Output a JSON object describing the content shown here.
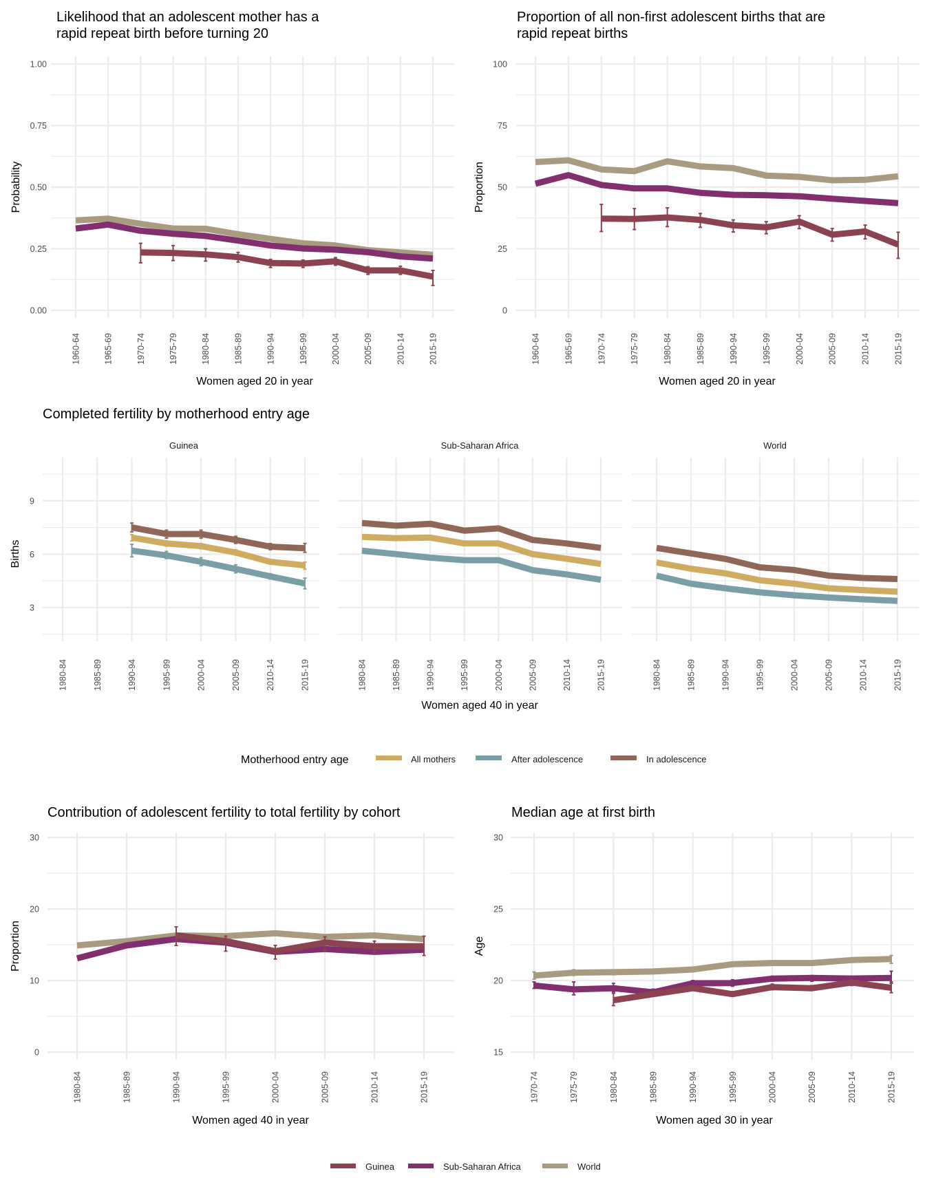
{
  "colors": {
    "Guinea": "#8b4351",
    "Sub-Saharan Africa": "#822f70",
    "World": "#a89b80",
    "All mothers": "#cfab62",
    "After adolescence": "#7a9ea5",
    "In adolescence": "#8f6657",
    "grid": "#ebebeb"
  },
  "legends": {
    "entry_age": {
      "title": "Motherhood entry age",
      "items": [
        "All mothers",
        "After adolescence",
        "In adolescence"
      ]
    },
    "region": {
      "items": [
        "Guinea",
        "Sub-Saharan Africa",
        "World"
      ]
    }
  },
  "chart_data": [
    {
      "id": "rapid-repeat-likelihood",
      "type": "line",
      "title": [
        "Likelihood that an adolescent mother has a",
        "rapid repeat birth before turning 20"
      ],
      "xlabel": "Women aged 20 in year",
      "ylabel": "Probability",
      "ylim": [
        0,
        1
      ],
      "yticks": [
        0,
        0.25,
        0.5,
        0.75,
        1
      ],
      "ytick_labels": [
        "0.00",
        "0.25",
        "0.50",
        "0.75",
        "1.00"
      ],
      "grid": true,
      "categories": [
        "1960-64",
        "1965-69",
        "1970-74",
        "1975-79",
        "1980-84",
        "1985-89",
        "1990-94",
        "1995-99",
        "2000-04",
        "2005-09",
        "2010-14",
        "2015-19"
      ],
      "series": [
        {
          "name": "World",
          "values": [
            0.365,
            0.372,
            0.351,
            0.332,
            0.331,
            0.309,
            0.29,
            0.272,
            0.263,
            0.244,
            0.235,
            0.225
          ]
        },
        {
          "name": "Sub-Saharan Africa",
          "values": [
            0.332,
            0.348,
            0.323,
            0.311,
            0.302,
            0.283,
            0.263,
            0.251,
            0.246,
            0.236,
            0.219,
            0.21
          ]
        },
        {
          "name": "Guinea",
          "values": [
            null,
            null,
            0.235,
            0.233,
            0.227,
            0.216,
            0.192,
            0.19,
            0.199,
            0.162,
            0.162,
            0.137
          ],
          "lower": [
            null,
            null,
            0.193,
            0.202,
            0.2,
            0.196,
            0.174,
            0.174,
            0.183,
            0.146,
            0.146,
            0.101
          ],
          "upper": [
            null,
            null,
            0.272,
            0.263,
            0.25,
            0.235,
            0.207,
            0.204,
            0.214,
            0.177,
            0.179,
            0.162
          ]
        }
      ]
    },
    {
      "id": "rapid-repeat-proportion",
      "type": "line",
      "title": [
        "Proportion of all non-first adolescent births that are",
        "rapid repeat births"
      ],
      "xlabel": "Women aged 20 in year",
      "ylabel": "Proportion",
      "ylim": [
        0,
        100
      ],
      "yticks": [
        0,
        25,
        50,
        75,
        100
      ],
      "ytick_labels": [
        "0",
        "25",
        "50",
        "75",
        "100"
      ],
      "grid": true,
      "categories": [
        "1960-64",
        "1965-69",
        "1970-74",
        "1975-79",
        "1980-84",
        "1985-89",
        "1990-94",
        "1995-99",
        "2000-04",
        "2005-09",
        "2010-14",
        "2015-19"
      ],
      "series": [
        {
          "name": "World",
          "values": [
            60.2,
            60.9,
            57.2,
            56.5,
            60.5,
            58.4,
            57.7,
            54.7,
            54.2,
            52.8,
            53.0,
            54.4
          ]
        },
        {
          "name": "Sub-Saharan Africa",
          "values": [
            51.4,
            54.9,
            50.9,
            49.5,
            49.5,
            47.7,
            46.9,
            46.7,
            46.3,
            45.3,
            44.4,
            43.5
          ]
        },
        {
          "name": "Guinea",
          "values": [
            null,
            null,
            37.2,
            37.1,
            37.7,
            36.7,
            34.5,
            33.7,
            36.0,
            30.7,
            32.0,
            26.7
          ],
          "lower": [
            null,
            null,
            32.0,
            32.8,
            34.0,
            33.7,
            31.8,
            31.1,
            33.2,
            28.1,
            29.0,
            21.1
          ],
          "upper": [
            null,
            null,
            43.0,
            41.3,
            41.6,
            39.3,
            36.7,
            36.0,
            38.4,
            33.2,
            34.6,
            31.7
          ]
        }
      ]
    },
    {
      "id": "completed-fertility",
      "type": "line",
      "title": [
        "Completed fertility by motherhood entry age"
      ],
      "xlabel": "Women aged 40 in year",
      "ylabel": "Births",
      "ylim": [
        1.1,
        11.43
      ],
      "yticks": [
        3,
        6,
        9
      ],
      "ytick_labels": [
        "3",
        "6",
        "9"
      ],
      "minor_yticks": [
        1.5,
        4.5,
        7.5,
        10.5
      ],
      "grid": true,
      "categories": [
        "1980-84",
        "1985-89",
        "1990-94",
        "1995-99",
        "2000-04",
        "2005-09",
        "2010-14",
        "2015-19"
      ],
      "facets": [
        {
          "name": "Guinea",
          "series": [
            {
              "name": "In adolescence",
              "values": [
                null,
                null,
                7.5,
                7.13,
                7.13,
                6.8,
                6.42,
                6.33
              ],
              "lower": [
                null,
                null,
                7.25,
                6.9,
                6.9,
                6.6,
                6.25,
                6.1
              ],
              "upper": [
                null,
                null,
                7.75,
                7.35,
                7.35,
                7.0,
                6.6,
                6.6
              ]
            },
            {
              "name": "All mothers",
              "values": [
                null,
                null,
                6.93,
                6.6,
                6.45,
                6.09,
                5.57,
                5.37
              ],
              "lower": [
                null,
                null,
                6.75,
                6.45,
                6.3,
                5.95,
                5.45,
                5.15
              ],
              "upper": [
                null,
                null,
                7.1,
                6.75,
                6.6,
                6.25,
                5.7,
                5.55
              ]
            },
            {
              "name": "After adolescence",
              "values": [
                null,
                null,
                6.2,
                5.93,
                5.57,
                5.17,
                4.75,
                4.35
              ],
              "lower": [
                null,
                null,
                5.85,
                5.75,
                5.35,
                4.95,
                4.6,
                4.05
              ],
              "upper": [
                null,
                null,
                6.55,
                6.15,
                5.8,
                5.4,
                4.9,
                4.65
              ]
            }
          ]
        },
        {
          "name": "Sub-Saharan Africa",
          "series": [
            {
              "name": "In adolescence",
              "values": [
                7.75,
                7.6,
                7.71,
                7.32,
                7.45,
                6.8,
                6.6,
                6.35
              ]
            },
            {
              "name": "All mothers",
              "values": [
                6.97,
                6.9,
                6.93,
                6.6,
                6.6,
                6.0,
                5.74,
                5.45
              ]
            },
            {
              "name": "After adolescence",
              "values": [
                6.19,
                6.0,
                5.8,
                5.66,
                5.66,
                5.1,
                4.86,
                4.56
              ]
            }
          ]
        },
        {
          "name": "World",
          "series": [
            {
              "name": "In adolescence",
              "values": [
                6.35,
                6.04,
                5.73,
                5.26,
                5.11,
                4.79,
                4.66,
                4.6
              ]
            },
            {
              "name": "All mothers",
              "values": [
                5.53,
                5.18,
                4.92,
                4.53,
                4.34,
                4.08,
                3.98,
                3.89
              ]
            },
            {
              "name": "After adolescence",
              "values": [
                4.79,
                4.34,
                4.08,
                3.85,
                3.69,
                3.56,
                3.46,
                3.37
              ]
            }
          ]
        }
      ]
    },
    {
      "id": "adolescent-contribution",
      "type": "line",
      "title": [
        "Contribution of adolescent fertility to total fertility by cohort"
      ],
      "xlabel": "Women aged 40 in year",
      "ylabel": "Proportion",
      "ylim": [
        0,
        30
      ],
      "yticks": [
        0,
        10,
        20,
        30
      ],
      "ytick_labels": [
        "0",
        "10",
        "20",
        "30"
      ],
      "minor_yticks": [
        5,
        15,
        25
      ],
      "grid": true,
      "categories": [
        "1980-84",
        "1985-89",
        "1990-94",
        "1995-99",
        "2000-04",
        "2005-09",
        "2010-14",
        "2015-19"
      ],
      "series": [
        {
          "name": "World",
          "values": [
            14.9,
            15.5,
            16.3,
            16.2,
            16.6,
            16.1,
            16.3,
            15.8
          ]
        },
        {
          "name": "Sub-Saharan Africa",
          "values": [
            13.1,
            14.9,
            15.8,
            15.3,
            14.0,
            14.4,
            14.0,
            14.3
          ]
        },
        {
          "name": "Guinea",
          "values": [
            null,
            null,
            16.3,
            15.5,
            14.1,
            15.3,
            14.8,
            14.8
          ],
          "lower": [
            null,
            null,
            14.9,
            14.1,
            13.0,
            14.2,
            14.0,
            13.5
          ],
          "upper": [
            null,
            null,
            17.5,
            16.2,
            14.9,
            16.1,
            15.5,
            16.2
          ]
        }
      ]
    },
    {
      "id": "median-age-first-birth",
      "type": "line",
      "title": [
        "Median age at first birth"
      ],
      "xlabel": "Women aged 30 in year",
      "ylabel": "Age",
      "ylim": [
        15,
        30
      ],
      "yticks": [
        15,
        20,
        25,
        30
      ],
      "ytick_labels": [
        "15",
        "20",
        "25",
        "30"
      ],
      "minor_yticks": [
        17.5,
        22.5,
        27.5
      ],
      "grid": true,
      "categories": [
        "1970-74",
        "1975-79",
        "1980-84",
        "1985-89",
        "1990-94",
        "1995-99",
        "2000-04",
        "2005-09",
        "2010-14",
        "2015-19"
      ],
      "series": [
        {
          "name": "World",
          "values": [
            20.34,
            20.55,
            20.58,
            20.63,
            20.77,
            21.14,
            21.22,
            21.22,
            21.43,
            21.5
          ],
          "lower": [
            20.1,
            20.35,
            20.4,
            null,
            null,
            null,
            null,
            null,
            null,
            21.2
          ],
          "upper": [
            20.6,
            20.75,
            20.75,
            null,
            null,
            null,
            null,
            null,
            null,
            21.75
          ]
        },
        {
          "name": "Sub-Saharan Africa",
          "values": [
            19.65,
            19.38,
            19.46,
            19.18,
            19.81,
            19.82,
            20.13,
            20.18,
            20.14,
            20.18
          ],
          "lower": [
            19.45,
            19.0,
            19.2,
            19.0,
            19.6,
            19.6,
            19.95,
            19.95,
            19.95,
            19.8
          ],
          "upper": [
            19.9,
            19.9,
            19.8,
            19.4,
            20.0,
            20.05,
            20.3,
            20.35,
            20.3,
            20.65
          ]
        },
        {
          "name": "Guinea",
          "values": [
            null,
            null,
            18.62,
            19.05,
            19.46,
            19.05,
            19.54,
            19.46,
            19.86,
            19.49
          ],
          "lower": [
            null,
            null,
            18.25,
            18.9,
            19.3,
            18.9,
            19.35,
            19.3,
            19.65,
            19.15
          ],
          "upper": [
            null,
            null,
            19.1,
            19.25,
            19.65,
            19.2,
            19.75,
            19.65,
            20.05,
            19.9
          ]
        }
      ]
    }
  ]
}
